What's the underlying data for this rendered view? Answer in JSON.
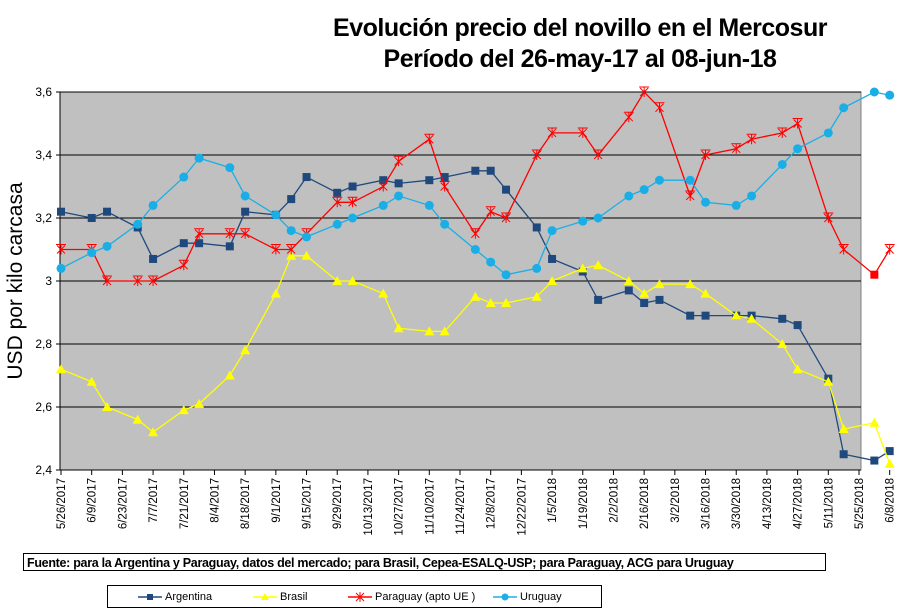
{
  "chart_data": {
    "type": "line",
    "title": "Evolución precio del novillo en el Mercosur",
    "subtitle": "Período del 26-may-17 al 08-jun-18",
    "xlabel": "",
    "ylabel": "USD por kilo carcasa",
    "ylim": [
      2.4,
      3.6
    ],
    "y_ticks": [
      "2,4",
      "2,6",
      "2,8",
      "3",
      "3,2",
      "3,4",
      "3,6"
    ],
    "y_tick_values": [
      2.4,
      2.6,
      2.8,
      3.0,
      3.2,
      3.4,
      3.6
    ],
    "x_ticks": [
      "5/26/2017",
      "6/9/2017",
      "6/23/2017",
      "7/7/2017",
      "7/21/2017",
      "8/4/2017",
      "8/18/2017",
      "9/1/2017",
      "9/15/2017",
      "9/29/2017",
      "10/13/2017",
      "10/27/2017",
      "11/10/2017",
      "11/24/2017",
      "12/8/2017",
      "12/22/2017",
      "1/5/2018",
      "1/19/2018",
      "2/2/2018",
      "2/16/2018",
      "3/2/2018",
      "3/16/2018",
      "3/30/2018",
      "4/13/2018",
      "4/27/2018",
      "5/11/2018",
      "5/25/2018",
      "6/8/2018"
    ],
    "x_unit": "weeks since 5/26/2017",
    "xlim": [
      0,
      54
    ],
    "grid": true,
    "legend_position": "bottom",
    "series": [
      {
        "name": "Argentina",
        "color": "#1f497d",
        "marker": "square",
        "points": [
          [
            0,
            3.22
          ],
          [
            2,
            3.2
          ],
          [
            3,
            3.22
          ],
          [
            5,
            3.17
          ],
          [
            6,
            3.07
          ],
          [
            8,
            3.12
          ],
          [
            9,
            3.12
          ],
          [
            11,
            3.11
          ],
          [
            12,
            3.22
          ],
          [
            14,
            3.21
          ],
          [
            15,
            3.26
          ],
          [
            16,
            3.33
          ],
          [
            18,
            3.28
          ],
          [
            19,
            3.3
          ],
          [
            21,
            3.32
          ],
          [
            22,
            3.31
          ],
          [
            24,
            3.32
          ],
          [
            25,
            3.33
          ],
          [
            27,
            3.35
          ],
          [
            28,
            3.35
          ],
          [
            29,
            3.29
          ],
          [
            31,
            3.17
          ],
          [
            32,
            3.07
          ],
          [
            34,
            3.03
          ],
          [
            35,
            2.94
          ],
          [
            37,
            2.97
          ],
          [
            38,
            2.93
          ],
          [
            39,
            2.94
          ],
          [
            41,
            2.89
          ],
          [
            42,
            2.89
          ],
          [
            44,
            2.89
          ],
          [
            45,
            2.89
          ],
          [
            47,
            2.88
          ],
          [
            48,
            2.86
          ],
          [
            50,
            2.69
          ],
          [
            51,
            2.45
          ],
          [
            53,
            2.43
          ],
          [
            54,
            2.46
          ]
        ]
      },
      {
        "name": "Brasil",
        "color": "#ffff00",
        "marker": "triangle",
        "points": [
          [
            0,
            2.72
          ],
          [
            2,
            2.68
          ],
          [
            3,
            2.6
          ],
          [
            5,
            2.56
          ],
          [
            6,
            2.52
          ],
          [
            8,
            2.59
          ],
          [
            9,
            2.61
          ],
          [
            11,
            2.7
          ],
          [
            12,
            2.78
          ],
          [
            14,
            2.96
          ],
          [
            15,
            3.08
          ],
          [
            16,
            3.08
          ],
          [
            18,
            3.0
          ],
          [
            19,
            3.0
          ],
          [
            21,
            2.96
          ],
          [
            22,
            2.85
          ],
          [
            24,
            2.84
          ],
          [
            25,
            2.84
          ],
          [
            27,
            2.95
          ],
          [
            28,
            2.93
          ],
          [
            29,
            2.93
          ],
          [
            31,
            2.95
          ],
          [
            32,
            3.0
          ],
          [
            34,
            3.04
          ],
          [
            35,
            3.05
          ],
          [
            37,
            3.0
          ],
          [
            38,
            2.96
          ],
          [
            39,
            2.99
          ],
          [
            41,
            2.99
          ],
          [
            42,
            2.96
          ],
          [
            44,
            2.89
          ],
          [
            45,
            2.88
          ],
          [
            47,
            2.8
          ],
          [
            48,
            2.72
          ],
          [
            50,
            2.68
          ],
          [
            51,
            2.53
          ],
          [
            53,
            2.55
          ],
          [
            54,
            2.42
          ]
        ]
      },
      {
        "name": "Paraguay (apto UE )",
        "color": "#ff0000",
        "marker": "star",
        "highlight_last_low": [
          53,
          3.02
        ],
        "points": [
          [
            0,
            3.1
          ],
          [
            2,
            3.1
          ],
          [
            3,
            3.0
          ],
          [
            5,
            3.0
          ],
          [
            6,
            3.0
          ],
          [
            8,
            3.05
          ],
          [
            9,
            3.15
          ],
          [
            11,
            3.15
          ],
          [
            12,
            3.15
          ],
          [
            14,
            3.1
          ],
          [
            15,
            3.1
          ],
          [
            16,
            3.15
          ],
          [
            18,
            3.25
          ],
          [
            19,
            3.25
          ],
          [
            21,
            3.3
          ],
          [
            22,
            3.38
          ],
          [
            24,
            3.45
          ],
          [
            25,
            3.3
          ],
          [
            27,
            3.15
          ],
          [
            28,
            3.22
          ],
          [
            29,
            3.2
          ],
          [
            31,
            3.4
          ],
          [
            32,
            3.47
          ],
          [
            34,
            3.47
          ],
          [
            35,
            3.4
          ],
          [
            37,
            3.52
          ],
          [
            38,
            3.6
          ],
          [
            39,
            3.55
          ],
          [
            41,
            3.27
          ],
          [
            42,
            3.4
          ],
          [
            44,
            3.42
          ],
          [
            45,
            3.45
          ],
          [
            47,
            3.47
          ],
          [
            48,
            3.5
          ],
          [
            50,
            3.2
          ],
          [
            51,
            3.1
          ],
          [
            53,
            3.02
          ],
          [
            54,
            3.1
          ]
        ]
      },
      {
        "name": "Uruguay",
        "color": "#1aaee6",
        "marker": "circle",
        "points": [
          [
            0,
            3.04
          ],
          [
            2,
            3.09
          ],
          [
            3,
            3.11
          ],
          [
            5,
            3.18
          ],
          [
            6,
            3.24
          ],
          [
            8,
            3.33
          ],
          [
            9,
            3.39
          ],
          [
            11,
            3.36
          ],
          [
            12,
            3.27
          ],
          [
            14,
            3.21
          ],
          [
            15,
            3.16
          ],
          [
            16,
            3.14
          ],
          [
            18,
            3.18
          ],
          [
            19,
            3.2
          ],
          [
            21,
            3.24
          ],
          [
            22,
            3.27
          ],
          [
            24,
            3.24
          ],
          [
            25,
            3.18
          ],
          [
            27,
            3.1
          ],
          [
            28,
            3.06
          ],
          [
            29,
            3.02
          ],
          [
            31,
            3.04
          ],
          [
            32,
            3.16
          ],
          [
            34,
            3.19
          ],
          [
            35,
            3.2
          ],
          [
            37,
            3.27
          ],
          [
            38,
            3.29
          ],
          [
            39,
            3.32
          ],
          [
            41,
            3.32
          ],
          [
            42,
            3.25
          ],
          [
            44,
            3.24
          ],
          [
            45,
            3.27
          ],
          [
            47,
            3.37
          ],
          [
            48,
            3.42
          ],
          [
            50,
            3.47
          ],
          [
            51,
            3.55
          ],
          [
            53,
            3.6
          ],
          [
            54,
            3.59
          ]
        ]
      }
    ]
  },
  "source_note": "Fuente: para la Argentina y Paraguay, datos del mercado; para Brasil, Cepea-ESALQ-USP; para Paraguay, ACG para Uruguay"
}
